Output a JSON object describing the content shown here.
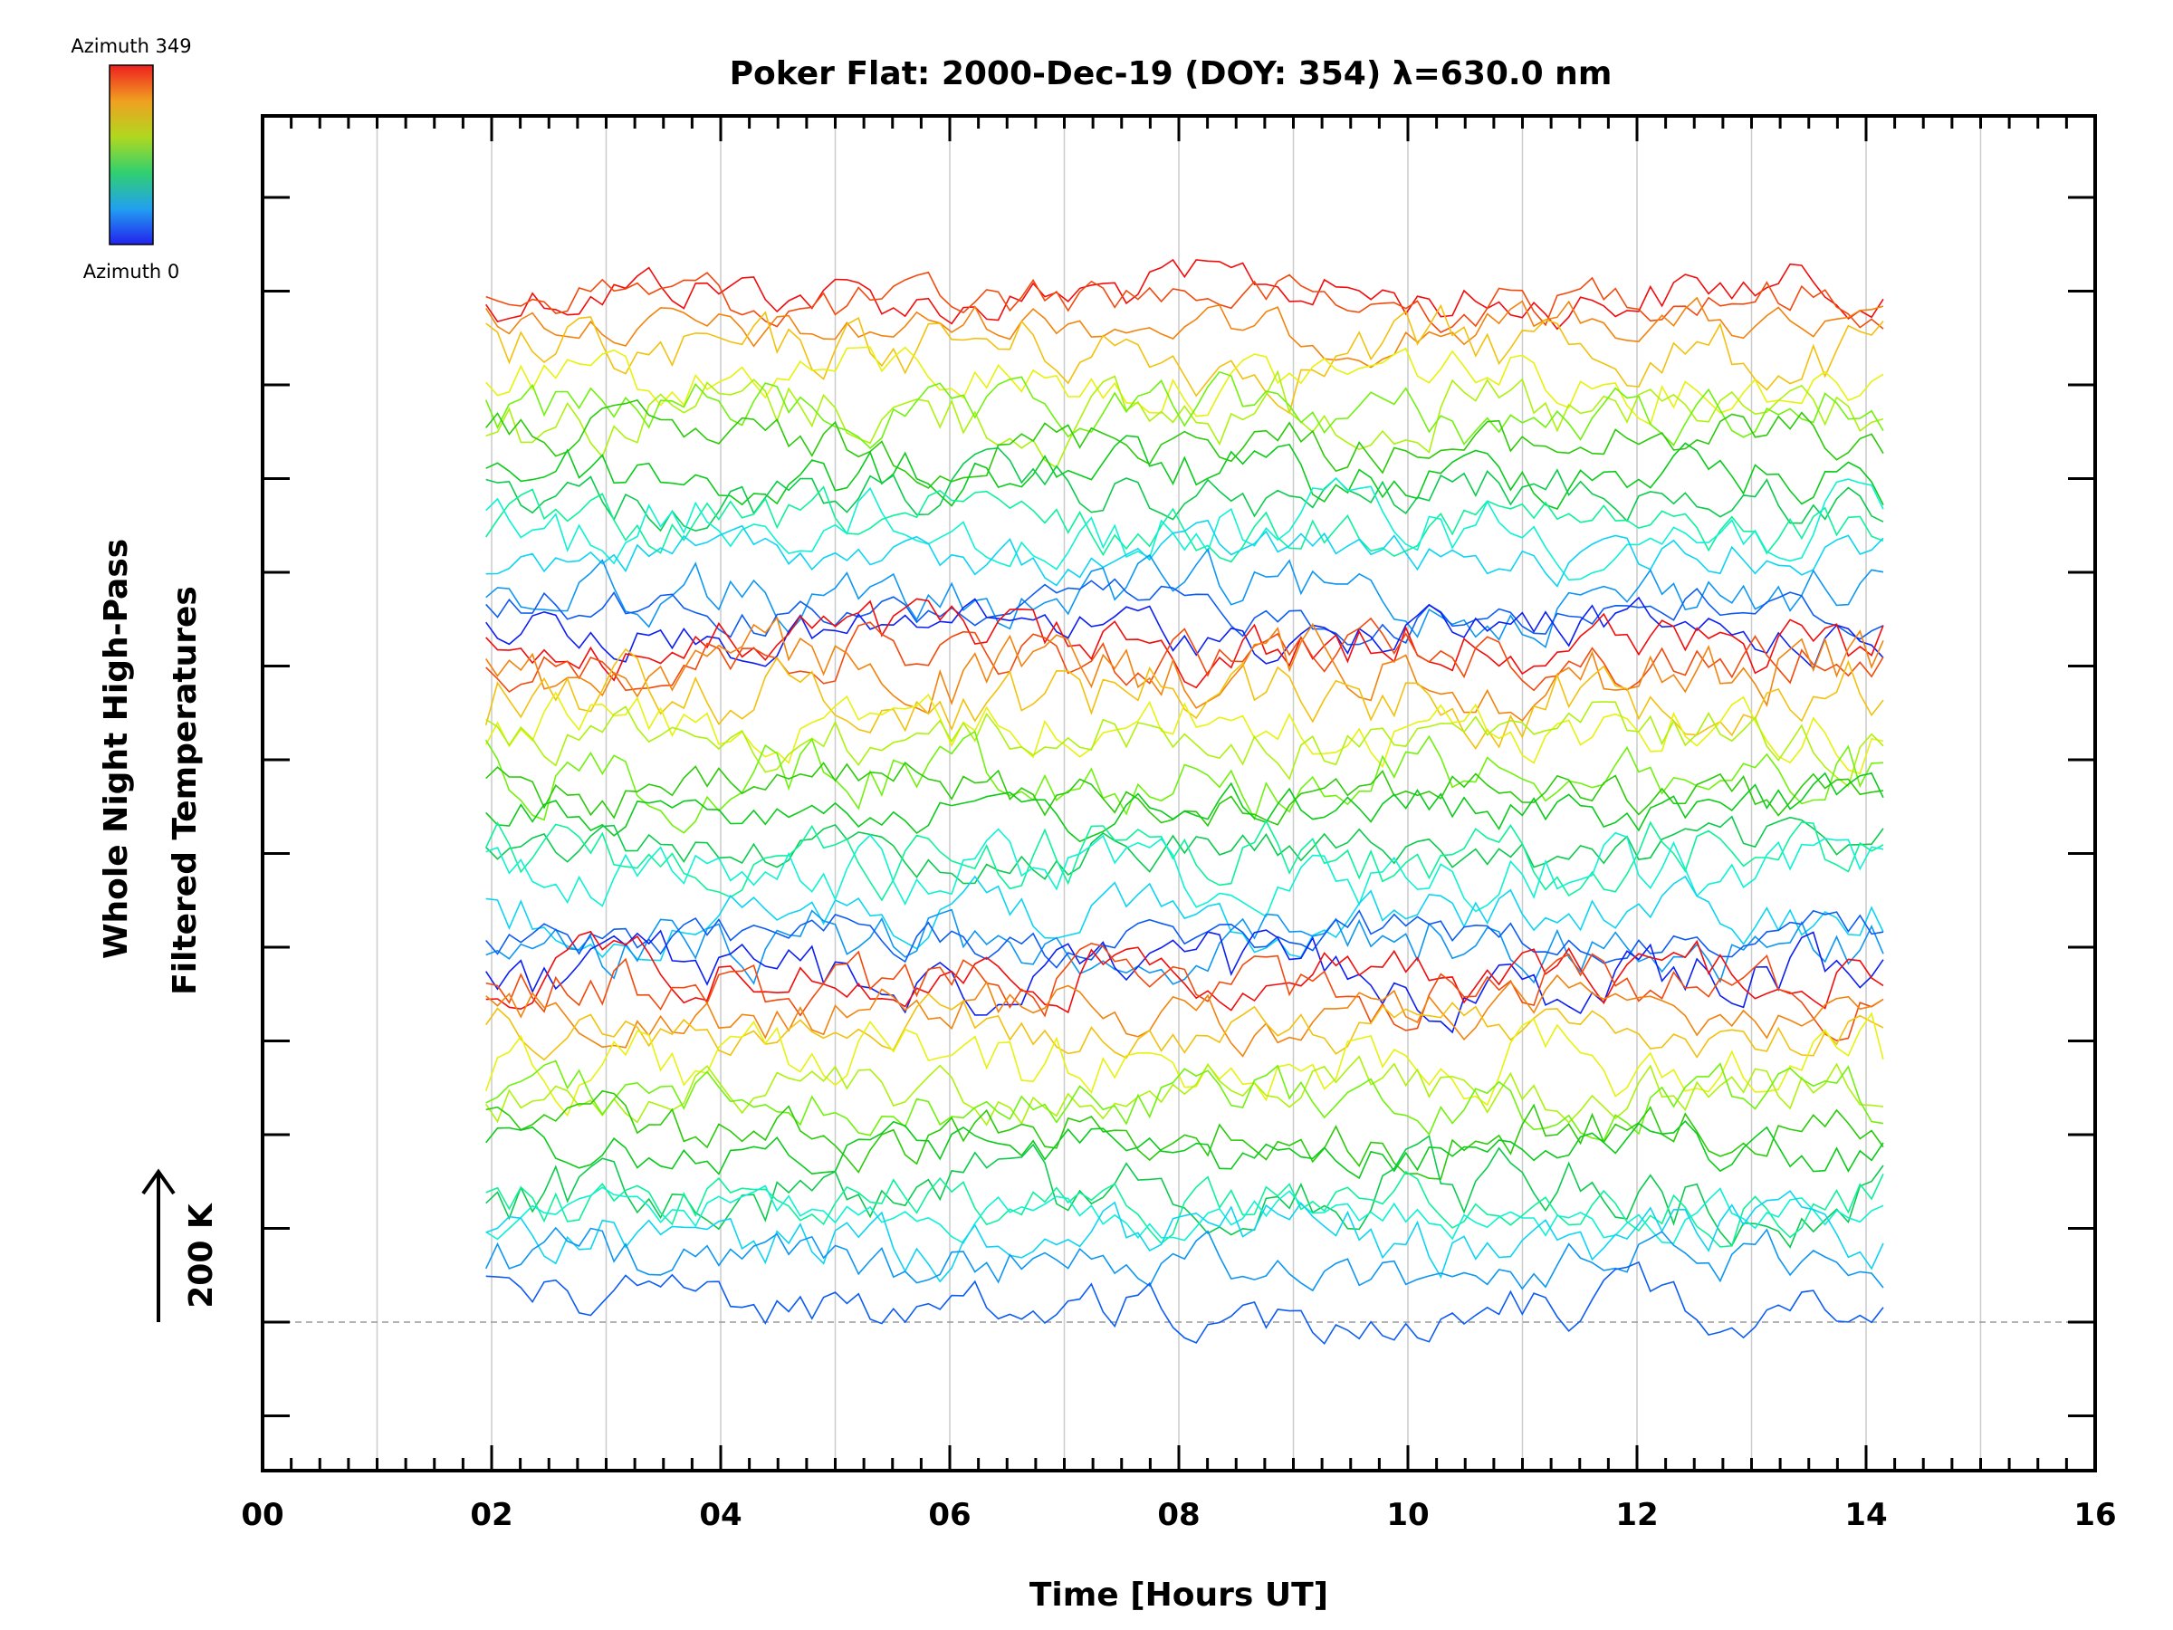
{
  "chart_data": {
    "type": "line",
    "title": "Poker Flat: 2000-Dec-19 (DOY: 354) λ=630.0 nm",
    "xlabel": "Time [Hours UT]",
    "ylabel_line1": "Whole Night High-Pass",
    "ylabel_line2": "Filtered Temperatures",
    "scale_bar_label": "200 K",
    "xlim": [
      0,
      16
    ],
    "x_tick_labels": [
      "00",
      "02",
      "04",
      "06",
      "08",
      "10",
      "12",
      "14",
      "16"
    ],
    "data_time_range": [
      1.95,
      14.15
    ],
    "vertical_grid_hours": [
      1,
      2,
      3,
      4,
      5,
      6,
      7,
      8,
      9,
      10,
      11,
      12,
      13,
      14,
      15
    ],
    "series_count": 47,
    "colorbar": {
      "top_label": "Azimuth 349",
      "bottom_label": "Azimuth 0",
      "gradient": [
        "#2222ee",
        "#22a0f0",
        "#30d070",
        "#b0d820",
        "#f0a020",
        "#ee2020"
      ]
    },
    "colors": {
      "grid": "#cccccc",
      "baseline": "#999999",
      "axes": "#000000"
    }
  }
}
